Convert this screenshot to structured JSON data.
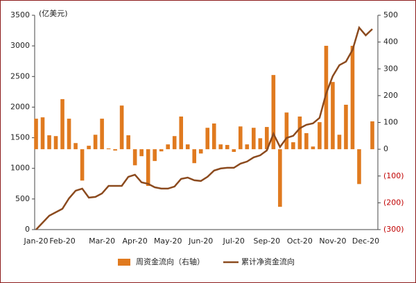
{
  "chart_data": {
    "type": "bar_line",
    "unit_label": "(亿美元)",
    "categories": [
      "Jan-20",
      null,
      null,
      null,
      "Feb-20",
      null,
      null,
      null,
      null,
      null,
      "Mar-20",
      null,
      null,
      null,
      null,
      "Apr-20",
      null,
      null,
      null,
      null,
      "May-20",
      null,
      null,
      null,
      null,
      "Jun-20",
      null,
      null,
      null,
      null,
      "Jul-20",
      null,
      null,
      null,
      null,
      "Sep-20",
      null,
      null,
      null,
      null,
      "Oct-20",
      null,
      null,
      null,
      null,
      "Nov-20",
      null,
      null,
      null,
      null,
      "Dec-20",
      null
    ],
    "series": [
      {
        "name": "周资金流向（右轴）",
        "kind": "bar",
        "axis": "y2",
        "color": "#e07a1f",
        "values": [
          114,
          119,
          52,
          49,
          187,
          114,
          23,
          -117,
          13,
          54,
          114,
          3,
          -5,
          163,
          52,
          -60,
          -26,
          -137,
          -44,
          -8,
          18,
          49,
          122,
          18,
          -52,
          -16,
          80,
          96,
          18,
          16,
          -10,
          85,
          18,
          80,
          41,
          83,
          277,
          -215,
          137,
          26,
          122,
          60,
          10,
          101,
          386,
          251,
          54,
          166,
          386,
          -130,
          null,
          104
        ]
      },
      {
        "name": "累计净资金流向",
        "kind": "line",
        "axis": "y",
        "color": "#8b4a1e",
        "values": [
          0,
          113,
          227,
          283,
          340,
          510,
          635,
          669,
          522,
          533,
          590,
          714,
          714,
          714,
          862,
          896,
          771,
          748,
          691,
          669,
          669,
          703,
          828,
          850,
          805,
          794,
          862,
          964,
          998,
          1009,
          1009,
          1077,
          1111,
          1179,
          1213,
          1292,
          1565,
          1349,
          1497,
          1531,
          1655,
          1712,
          1735,
          1825,
          2222,
          2505,
          2686,
          2743,
          2935,
          3298,
          3173,
          3275
        ]
      }
    ],
    "ylim": [
      0,
      3500
    ],
    "yticks": [
      0,
      500,
      1000,
      1500,
      2000,
      2500,
      3000,
      3500
    ],
    "y2lim": [
      -300,
      500
    ],
    "y2ticks": [
      {
        "value": -300,
        "label": "(300)"
      },
      {
        "value": -200,
        "label": "(200)"
      },
      {
        "value": -100,
        "label": "(100)"
      },
      0,
      100,
      200,
      300,
      400,
      500
    ],
    "negative_tick_color": "#c00000"
  }
}
